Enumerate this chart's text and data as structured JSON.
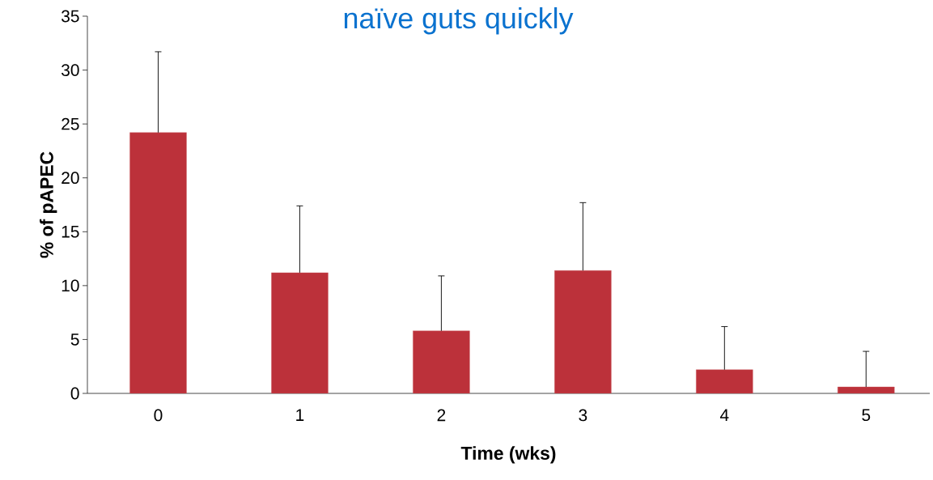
{
  "chart_data": {
    "type": "bar",
    "title": "naïve guts quickly",
    "xlabel": "Time (wks)",
    "ylabel": "% of pAPEC",
    "categories": [
      "0",
      "1",
      "2",
      "3",
      "4",
      "5"
    ],
    "values": [
      24.2,
      11.2,
      5.8,
      11.4,
      2.2,
      0.6
    ],
    "errors": [
      [
        24.2,
        31.7
      ],
      [
        11.2,
        17.4
      ],
      [
        5.8,
        10.9
      ],
      [
        11.4,
        17.7
      ],
      [
        2.2,
        6.2
      ],
      [
        0.6,
        3.9
      ]
    ],
    "color": "#bc313a",
    "ylim": [
      0,
      35
    ],
    "yticks": [
      0,
      5,
      10,
      15,
      20,
      25,
      30,
      35
    ],
    "grid": false
  }
}
